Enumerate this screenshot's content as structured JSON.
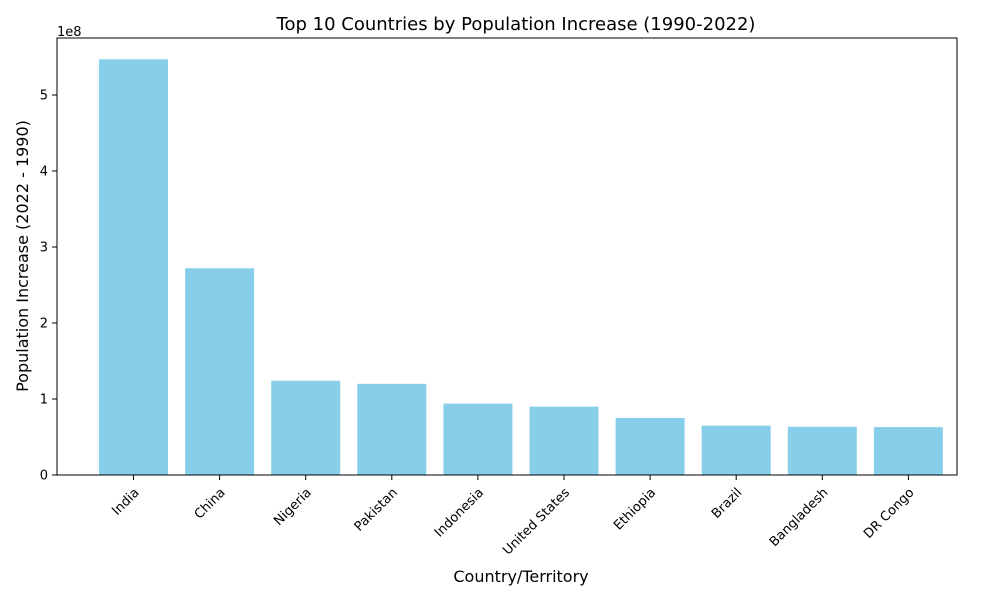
{
  "chart_data": {
    "type": "bar",
    "title": "Top 10 Countries by Population Increase (1990-2022)",
    "xlabel": "Country/Territory",
    "ylabel": "Population Increase (2022 - 1990)",
    "scale_label": "1e8",
    "categories": [
      "India",
      "China",
      "Nigeria",
      "Pakistan",
      "Indonesia",
      "United States",
      "Ethiopia",
      "Brazil",
      "Bangladesh",
      "DR Congo"
    ],
    "values": [
      547000000,
      272000000,
      124000000,
      120000000,
      94000000,
      90000000,
      75000000,
      65000000,
      63500000,
      63000000
    ],
    "ylim": [
      0,
      575000000
    ],
    "yticks": [
      0,
      100000000,
      200000000,
      300000000,
      400000000,
      500000000
    ],
    "ytick_labels": [
      "0",
      "1",
      "2",
      "3",
      "4",
      "5"
    ],
    "grid": false,
    "legend": "none",
    "bar_color": "#87ceeb"
  }
}
